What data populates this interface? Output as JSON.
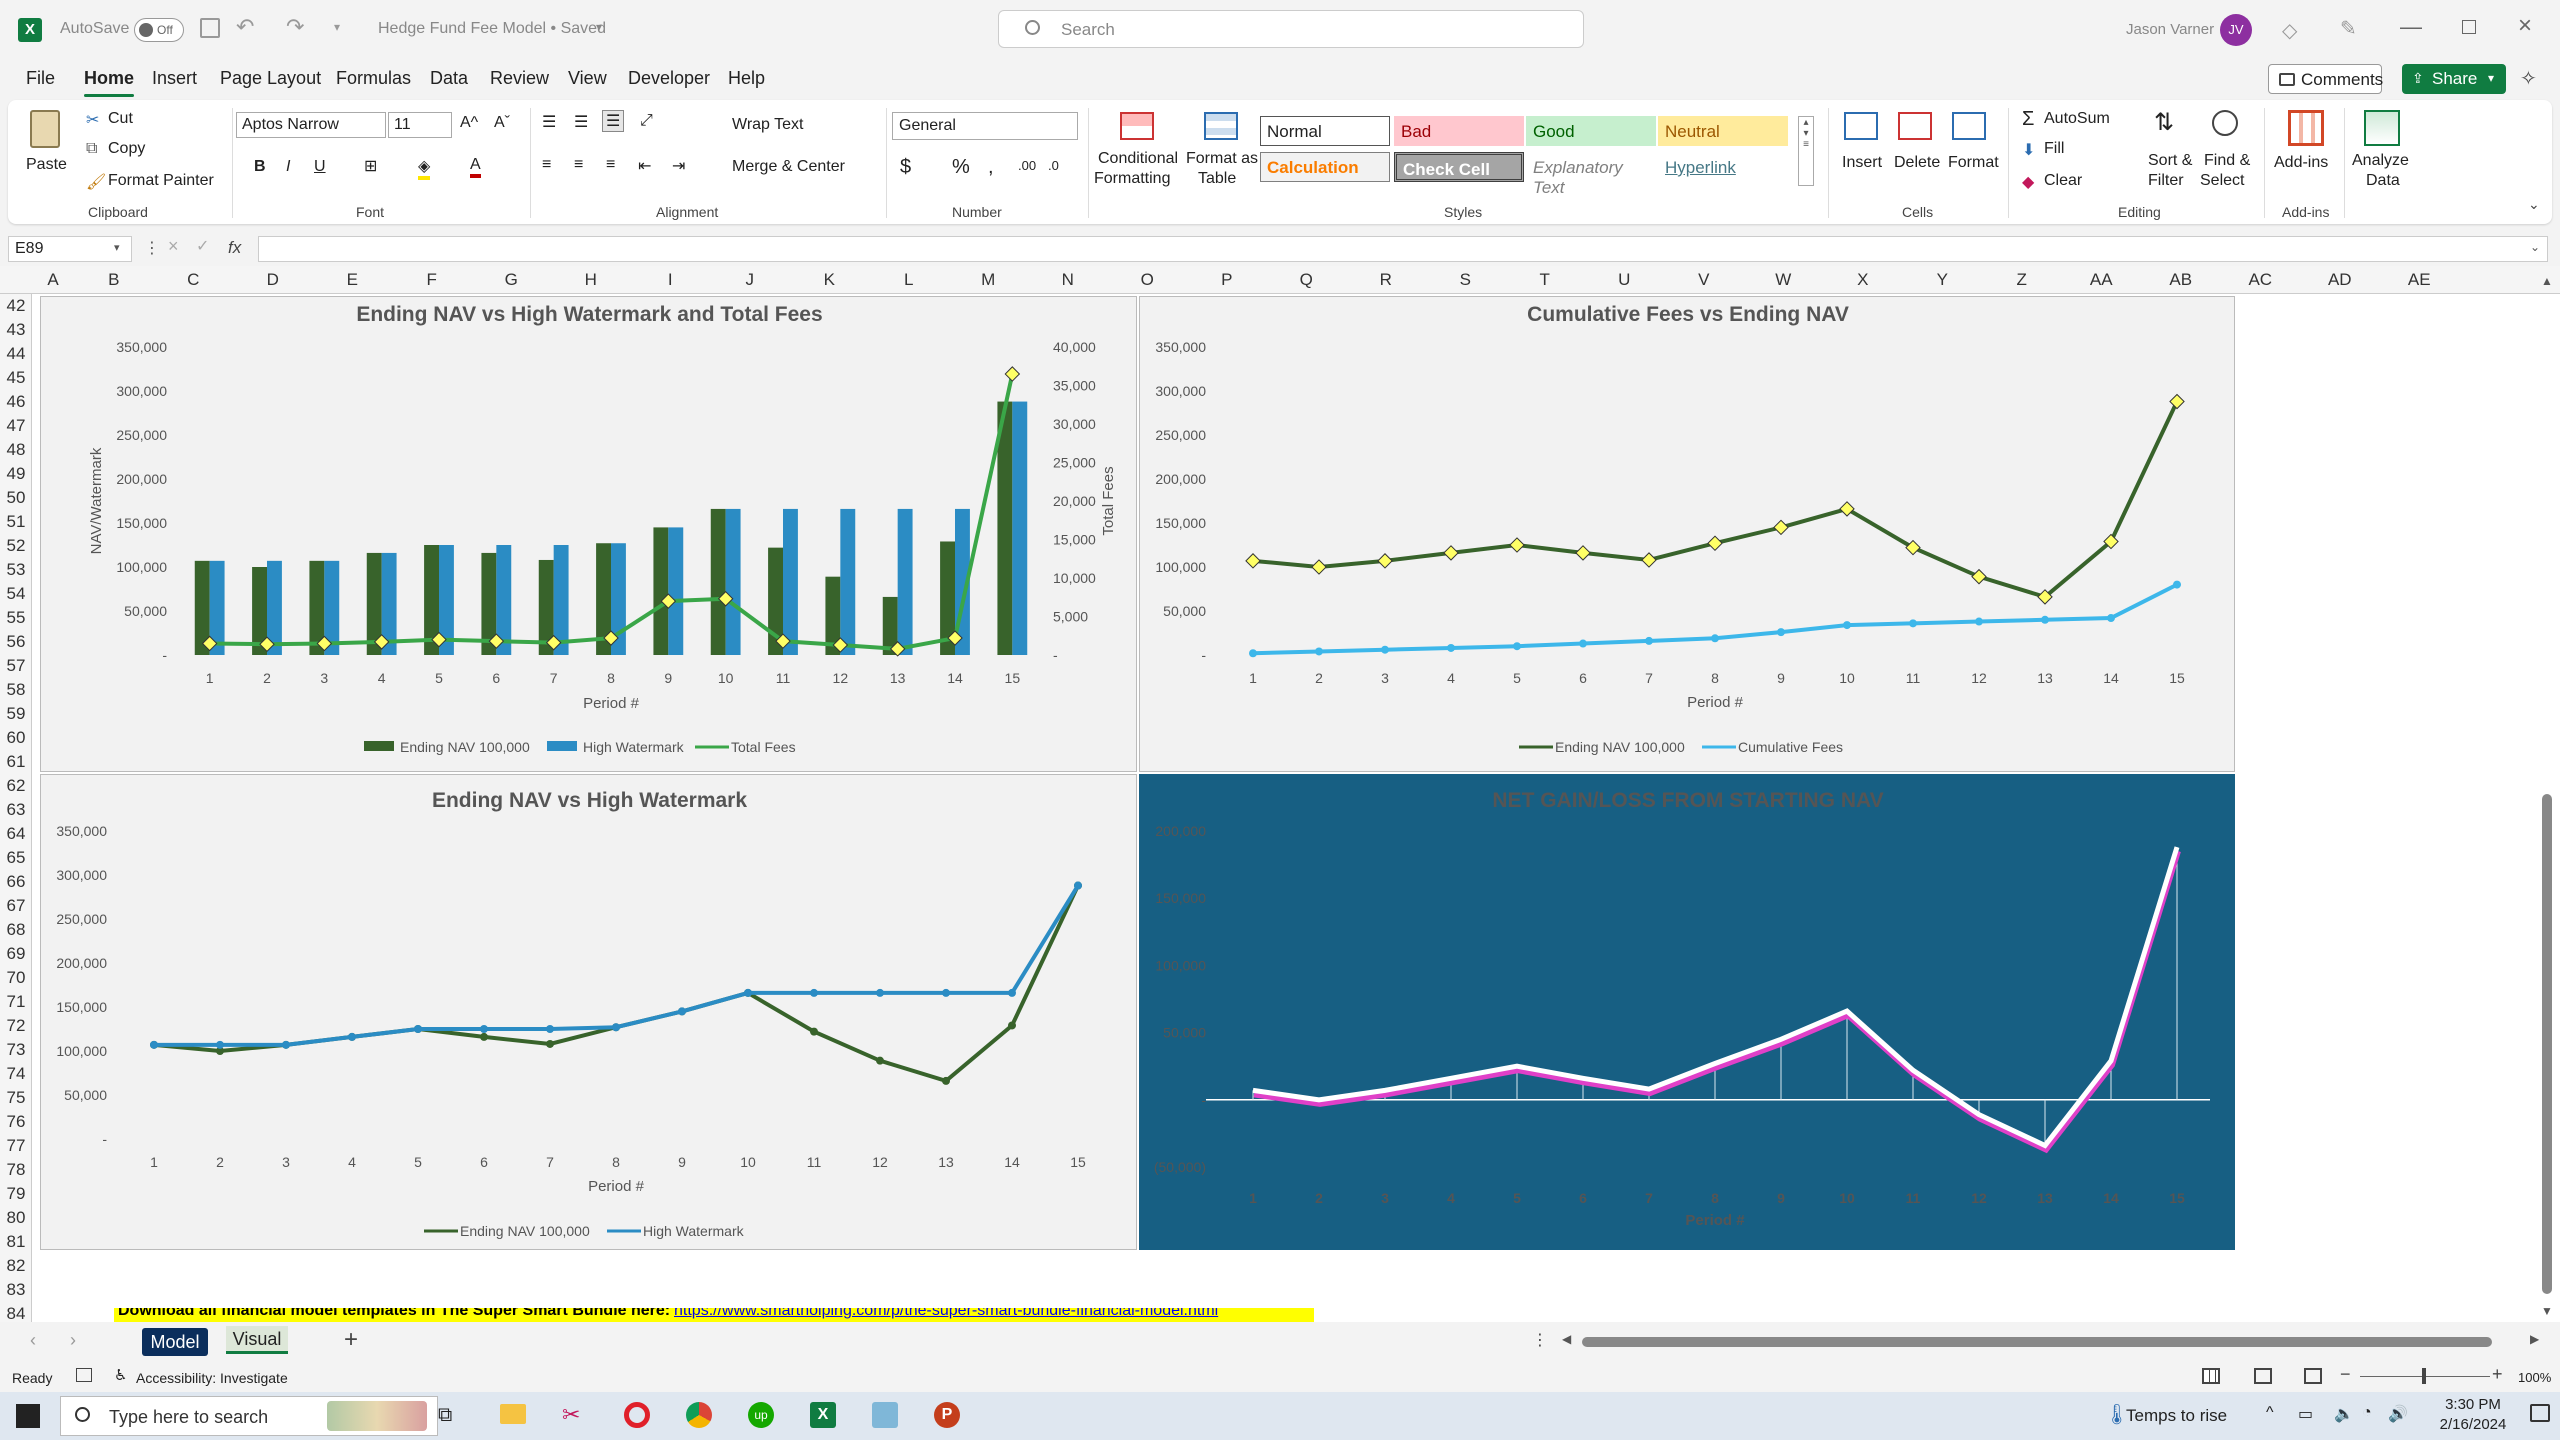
{
  "titlebar": {
    "autosave_label": "AutoSave",
    "autosave_state": "Off",
    "doc_title": "Hedge Fund Fee Model • Saved",
    "search_placeholder": "Search",
    "user_name": "Jason Varner",
    "user_initials": "JV"
  },
  "menu": [
    "File",
    "Home",
    "Insert",
    "Page Layout",
    "Formulas",
    "Data",
    "Review",
    "View",
    "Developer",
    "Help"
  ],
  "menu_active": "Home",
  "menu_buttons": {
    "comments": "Comments",
    "share": "Share"
  },
  "ribbon": {
    "clipboard": {
      "paste": "Paste",
      "cut": "Cut",
      "copy": "Copy",
      "format_painter": "Format Painter",
      "group": "Clipboard"
    },
    "font": {
      "name": "Aptos Narrow",
      "size": "11",
      "bold": "B",
      "italic": "I",
      "underline": "U",
      "group": "Font"
    },
    "alignment": {
      "wrap": "Wrap Text",
      "merge": "Merge & Center",
      "group": "Alignment"
    },
    "number": {
      "format": "General",
      "group": "Number"
    },
    "styles": {
      "conditional": "Conditional",
      "formatting": "Formatting",
      "format_as": "Format as",
      "table": "Table",
      "normal": "Normal",
      "bad": "Bad",
      "good": "Good",
      "neutral": "Neutral",
      "calculation": "Calculation",
      "check_cell": "Check Cell",
      "explanatory": "Explanatory Text",
      "hyperlink": "Hyperlink",
      "group": "Styles"
    },
    "cells": {
      "insert": "Insert",
      "delete": "Delete",
      "format": "Format",
      "group": "Cells"
    },
    "editing": {
      "autosum": "AutoSum",
      "fill": "Fill",
      "clear": "Clear",
      "sort": "Sort &",
      "filter": "Filter",
      "find": "Find &",
      "select": "Select",
      "group": "Editing"
    },
    "addins": {
      "addins": "Add-ins",
      "group": "Add-ins"
    },
    "analyze": {
      "analyze": "Analyze",
      "data": "Data"
    },
    "colors": {
      "accent": "#107c41",
      "bad_bg": "#ffc7ce",
      "good_bg": "#c6efce",
      "neutral_bg": "#ffeb9c"
    }
  },
  "formula_bar": {
    "name_box": "E89",
    "fx": "fx",
    "formula": ""
  },
  "columns": [
    "A",
    "B",
    "C",
    "D",
    "E",
    "F",
    "G",
    "H",
    "I",
    "J",
    "K",
    "L",
    "M",
    "N",
    "O",
    "P",
    "Q",
    "R",
    "S",
    "T",
    "U",
    "V",
    "W",
    "X",
    "Y",
    "Z",
    "AA",
    "AB",
    "AC",
    "AD",
    "AE"
  ],
  "rows": [
    "42",
    "43",
    "44",
    "45",
    "46",
    "47",
    "48",
    "49",
    "50",
    "51",
    "52",
    "53",
    "54",
    "55",
    "56",
    "57",
    "58",
    "59",
    "60",
    "61",
    "62",
    "63",
    "64",
    "65",
    "66",
    "67",
    "68",
    "69",
    "70",
    "71",
    "72",
    "73",
    "74",
    "75",
    "76",
    "77",
    "78",
    "79",
    "80",
    "81",
    "82",
    "83",
    "84"
  ],
  "banner": {
    "text": "Download all financial model templates in The Super Smart Bundle here:",
    "link": "https://www.smartholping.com/p/the-super-smart-bundle-financial-model.html"
  },
  "sheet_tabs": [
    "Model",
    "Visual"
  ],
  "sheet_active": "Visual",
  "status": {
    "ready": "Ready",
    "accessibility": "Accessibility: Investigate",
    "zoom": "100%"
  },
  "taskbar": {
    "search_placeholder": "Type here to search",
    "weather": "Temps to rise",
    "time": "3:30 PM",
    "date": "2/16/2024"
  },
  "chart_data": [
    {
      "type": "bar",
      "title": "Ending NAV vs High Watermark and Total Fees",
      "xlabel": "Period #",
      "ylabel": "NAV/Watermark",
      "y2label": "Total Fees",
      "categories": [
        "1",
        "2",
        "3",
        "4",
        "5",
        "6",
        "7",
        "8",
        "9",
        "10",
        "11",
        "12",
        "13",
        "14",
        "15"
      ],
      "ylim": [
        0,
        350000
      ],
      "y2lim": [
        0,
        40000
      ],
      "yticks": [
        "350,000",
        "300,000",
        "250,000",
        "200,000",
        "150,000",
        "100,000",
        "50,000",
        "-"
      ],
      "y2ticks": [
        "40,000",
        "35,000",
        "30,000",
        "25,000",
        "20,000",
        "15,000",
        "10,000",
        "5,000",
        "-"
      ],
      "series": [
        {
          "name": "Ending NAV  100,000",
          "kind": "bar",
          "color": "#38632b",
          "values": [
            107000,
            100000,
            107000,
            116000,
            125000,
            116000,
            108000,
            127000,
            145000,
            166000,
            122000,
            89000,
            66000,
            129000,
            288000
          ]
        },
        {
          "name": "High Watermark",
          "kind": "bar",
          "color": "#2b8cc4",
          "values": [
            107000,
            107000,
            107000,
            116000,
            125000,
            125000,
            125000,
            127000,
            145000,
            166000,
            166000,
            166000,
            166000,
            166000,
            288000
          ]
        },
        {
          "name": "Total Fees",
          "kind": "line",
          "axis": "y2",
          "color": "#3aa648",
          "values": [
            1500,
            1400,
            1500,
            1700,
            2000,
            1800,
            1600,
            2200,
            7000,
            7300,
            1800,
            1300,
            800,
            2200,
            36500
          ]
        }
      ],
      "legend": "bottom"
    },
    {
      "type": "line",
      "title": "Cumulative Fees vs Ending NAV",
      "xlabel": "Period #",
      "categories": [
        "1",
        "2",
        "3",
        "4",
        "5",
        "6",
        "7",
        "8",
        "9",
        "10",
        "11",
        "12",
        "13",
        "14",
        "15"
      ],
      "ylim": [
        0,
        350000
      ],
      "yticks": [
        "350,000",
        "300,000",
        "250,000",
        "200,000",
        "150,000",
        "100,000",
        "50,000",
        "-"
      ],
      "series": [
        {
          "name": "Ending NAV  100,000",
          "color": "#38632b",
          "values": [
            107000,
            100000,
            107000,
            116000,
            125000,
            116000,
            108000,
            127000,
            145000,
            166000,
            122000,
            89000,
            66000,
            129000,
            288000
          ]
        },
        {
          "name": "Cumulative Fees",
          "color": "#3db7ea",
          "values": [
            2000,
            4000,
            6000,
            8000,
            10000,
            13000,
            16000,
            19000,
            26000,
            34000,
            36000,
            38000,
            40000,
            42000,
            80000
          ]
        }
      ],
      "legend": "bottom"
    },
    {
      "type": "line",
      "title": "Ending NAV vs High Watermark",
      "xlabel": "Period #",
      "categories": [
        "1",
        "2",
        "3",
        "4",
        "5",
        "6",
        "7",
        "8",
        "9",
        "10",
        "11",
        "12",
        "13",
        "14",
        "15"
      ],
      "ylim": [
        0,
        350000
      ],
      "yticks": [
        "350,000",
        "300,000",
        "250,000",
        "200,000",
        "150,000",
        "100,000",
        "50,000",
        "-"
      ],
      "series": [
        {
          "name": "Ending NAV  100,000",
          "color": "#38632b",
          "values": [
            107000,
            100000,
            107000,
            116000,
            125000,
            116000,
            108000,
            127000,
            145000,
            166000,
            122000,
            89000,
            66000,
            129000,
            288000
          ]
        },
        {
          "name": "High Watermark",
          "color": "#2b8cc4",
          "values": [
            107000,
            107000,
            107000,
            116000,
            125000,
            125000,
            125000,
            127000,
            145000,
            166000,
            166000,
            166000,
            166000,
            166000,
            288000
          ]
        }
      ],
      "legend": "bottom"
    },
    {
      "type": "line",
      "title": "NET GAIN/LOSS FROM STARTING NAV",
      "xlabel": "Period #",
      "categories": [
        "1",
        "2",
        "3",
        "4",
        "5",
        "6",
        "7",
        "8",
        "9",
        "10",
        "11",
        "12",
        "13",
        "14",
        "15"
      ],
      "ylim": [
        -50000,
        200000
      ],
      "yticks": [
        "200,000",
        "150,000",
        "100,000",
        "50,000",
        "-",
        "(50,000)"
      ],
      "series": [
        {
          "name": "",
          "color": "#ffffff",
          "values": [
            7000,
            0,
            7000,
            16000,
            25000,
            16000,
            8000,
            27000,
            45000,
            66000,
            22000,
            -11000,
            -34000,
            29000,
            188000
          ]
        }
      ],
      "background": "#175f83"
    }
  ]
}
